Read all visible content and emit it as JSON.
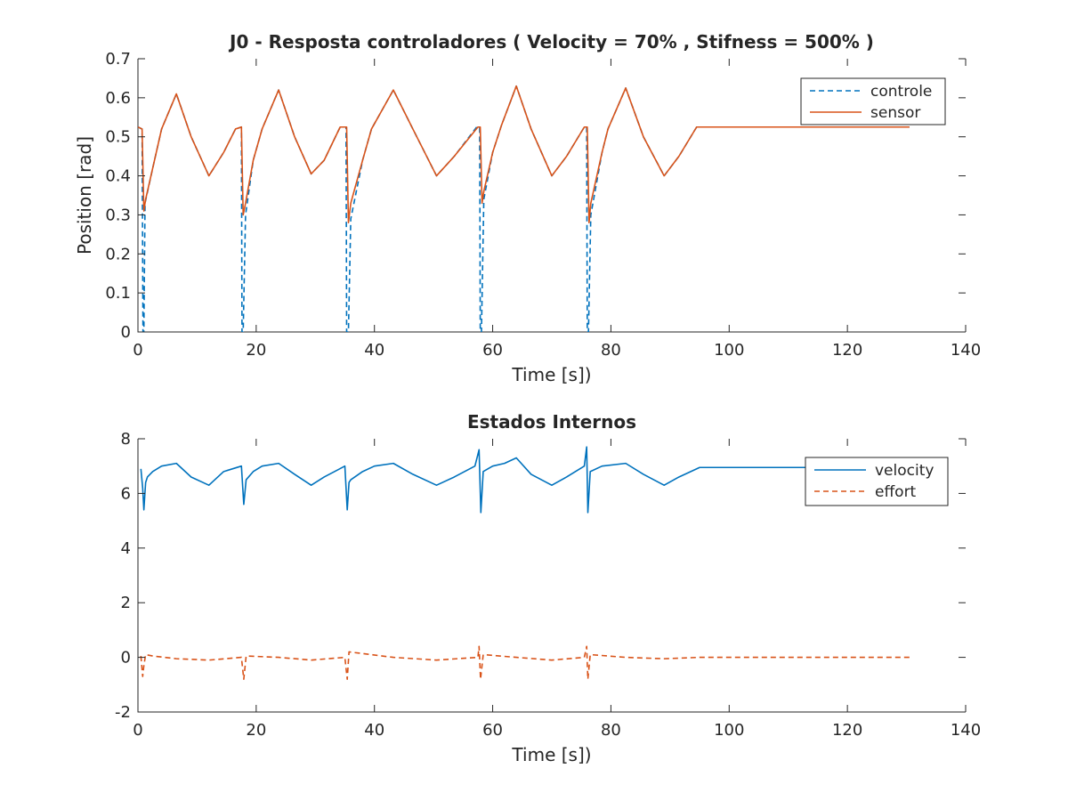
{
  "colors": {
    "blue": "#0072BD",
    "orange": "#D95319",
    "axis": "#262626",
    "background": "#ffffff"
  },
  "chart_data": [
    {
      "type": "line",
      "title": "J0 - Resposta controladores ( Velocity = 70% , Stifness = 500% )",
      "xlabel": "Time [s])",
      "ylabel": "Position [rad]",
      "xlim": [
        0,
        140
      ],
      "ylim": [
        0,
        0.7
      ],
      "xticks": [
        "0",
        "20",
        "40",
        "60",
        "80",
        "100",
        "120",
        "140"
      ],
      "yticks": [
        "0",
        "0.1",
        "0.2",
        "0.3",
        "0.4",
        "0.5",
        "0.6",
        "0.7"
      ],
      "grid": false,
      "legend_position": "top-right",
      "series": [
        {
          "name": "controle",
          "style": "dashed",
          "color": "#0072BD",
          "x": [
            0,
            0.7,
            0.85,
            1.0,
            1.2,
            2.5,
            4.0,
            6.5,
            9.0,
            12.0,
            14.5,
            16.5,
            17.5,
            17.6,
            17.8,
            18.2,
            19.5,
            21.0,
            23.8,
            26.5,
            29.3,
            31.5,
            34.2,
            35.2,
            35.3,
            35.6,
            36.0,
            38.0,
            39.5,
            43.2,
            46.5,
            50.5,
            53.5,
            57.3,
            57.8,
            57.9,
            58.1,
            58.5,
            60.0,
            61.5,
            64.0,
            66.5,
            70.0,
            72.5,
            75.5,
            75.9,
            76.0,
            76.2,
            76.6,
            78.5,
            79.5,
            82.5,
            85.5,
            89.0,
            91.5,
            94.5,
            130.5
          ],
          "y": [
            0.525,
            0.52,
            0.0,
            0.0,
            0.33,
            0.42,
            0.52,
            0.61,
            0.5,
            0.4,
            0.46,
            0.52,
            0.525,
            0.0,
            0.0,
            0.3,
            0.44,
            0.52,
            0.62,
            0.5,
            0.405,
            0.44,
            0.525,
            0.525,
            0.0,
            0.0,
            0.29,
            0.44,
            0.52,
            0.62,
            0.52,
            0.4,
            0.45,
            0.525,
            0.525,
            0.0,
            0.0,
            0.34,
            0.46,
            0.53,
            0.63,
            0.52,
            0.4,
            0.45,
            0.525,
            0.525,
            0.0,
            0.0,
            0.3,
            0.46,
            0.52,
            0.625,
            0.5,
            0.4,
            0.45,
            0.525,
            0.525
          ]
        },
        {
          "name": "sensor",
          "style": "solid",
          "color": "#D95319",
          "x": [
            0,
            0.7,
            1.0,
            1.3,
            2.5,
            4.0,
            6.5,
            9.0,
            12.0,
            14.5,
            16.5,
            17.5,
            17.8,
            18.2,
            19.5,
            21.0,
            23.8,
            26.5,
            29.3,
            31.5,
            34.2,
            35.3,
            35.6,
            36.0,
            38.0,
            39.5,
            43.2,
            46.5,
            50.5,
            53.5,
            57.5,
            57.9,
            58.2,
            58.5,
            60.0,
            61.5,
            64.0,
            66.5,
            70.0,
            72.5,
            75.5,
            76.0,
            76.3,
            76.6,
            78.5,
            79.5,
            82.5,
            85.5,
            89.0,
            91.5,
            94.5,
            130.5
          ],
          "y": [
            0.525,
            0.52,
            0.31,
            0.34,
            0.42,
            0.52,
            0.61,
            0.5,
            0.4,
            0.46,
            0.52,
            0.525,
            0.3,
            0.33,
            0.44,
            0.52,
            0.62,
            0.5,
            0.405,
            0.44,
            0.525,
            0.525,
            0.28,
            0.33,
            0.44,
            0.52,
            0.62,
            0.52,
            0.4,
            0.45,
            0.525,
            0.525,
            0.33,
            0.36,
            0.46,
            0.53,
            0.63,
            0.52,
            0.4,
            0.45,
            0.525,
            0.525,
            0.28,
            0.33,
            0.46,
            0.52,
            0.625,
            0.5,
            0.4,
            0.45,
            0.525,
            0.525
          ]
        }
      ]
    },
    {
      "type": "line",
      "title": "Estados Internos",
      "xlabel": "Time [s])",
      "ylabel": "",
      "xlim": [
        0,
        140
      ],
      "ylim": [
        -2,
        8
      ],
      "xticks": [
        "0",
        "20",
        "40",
        "60",
        "80",
        "100",
        "120",
        "140"
      ],
      "yticks": [
        "-2",
        "0",
        "2",
        "4",
        "6",
        "8"
      ],
      "grid": false,
      "legend_position": "top-right",
      "series": [
        {
          "name": "velocity",
          "style": "solid",
          "color": "#0072BD",
          "x": [
            0.5,
            0.8,
            1.0,
            1.3,
            1.6,
            2.5,
            4.0,
            6.5,
            9.0,
            12.0,
            14.5,
            17.5,
            17.9,
            18.3,
            19.5,
            21.0,
            23.8,
            26.5,
            29.3,
            31.5,
            35.0,
            35.4,
            35.7,
            36.0,
            38.0,
            40.0,
            43.2,
            46.5,
            50.5,
            53.5,
            57.0,
            57.7,
            58.0,
            58.4,
            60.0,
            62.0,
            64.0,
            66.5,
            70.0,
            72.5,
            75.5,
            75.9,
            76.1,
            76.5,
            78.5,
            82.5,
            85.5,
            89.0,
            91.5,
            95.0,
            130.5
          ],
          "y": [
            6.9,
            6.2,
            5.4,
            6.4,
            6.6,
            6.8,
            7.0,
            7.1,
            6.6,
            6.3,
            6.8,
            7.0,
            5.6,
            6.5,
            6.8,
            7.0,
            7.1,
            6.7,
            6.3,
            6.6,
            7.0,
            5.4,
            6.4,
            6.5,
            6.8,
            7.0,
            7.1,
            6.7,
            6.3,
            6.6,
            7.0,
            7.6,
            5.3,
            6.8,
            7.0,
            7.1,
            7.3,
            6.7,
            6.3,
            6.6,
            7.0,
            7.7,
            5.3,
            6.8,
            7.0,
            7.1,
            6.7,
            6.3,
            6.6,
            6.95,
            6.95
          ]
        },
        {
          "name": "effort",
          "style": "dashed",
          "color": "#D95319",
          "x": [
            0.5,
            0.8,
            1.0,
            1.3,
            2.5,
            6.5,
            12.0,
            17.5,
            17.9,
            18.3,
            23.8,
            29.3,
            35.0,
            35.4,
            35.7,
            43.2,
            50.5,
            57.5,
            57.7,
            57.95,
            58.4,
            64.0,
            70.0,
            75.5,
            75.9,
            76.1,
            76.5,
            82.5,
            89.0,
            95.0,
            130.5
          ],
          "y": [
            0.05,
            -0.7,
            -0.3,
            0.1,
            0.05,
            -0.05,
            -0.1,
            0.0,
            -0.8,
            0.05,
            0.0,
            -0.1,
            0.0,
            -0.8,
            0.2,
            0.0,
            -0.1,
            0.0,
            0.4,
            -0.8,
            0.1,
            0.0,
            -0.1,
            0.0,
            0.4,
            -0.8,
            0.1,
            0.0,
            -0.05,
            0.0,
            0.0
          ]
        }
      ]
    }
  ]
}
